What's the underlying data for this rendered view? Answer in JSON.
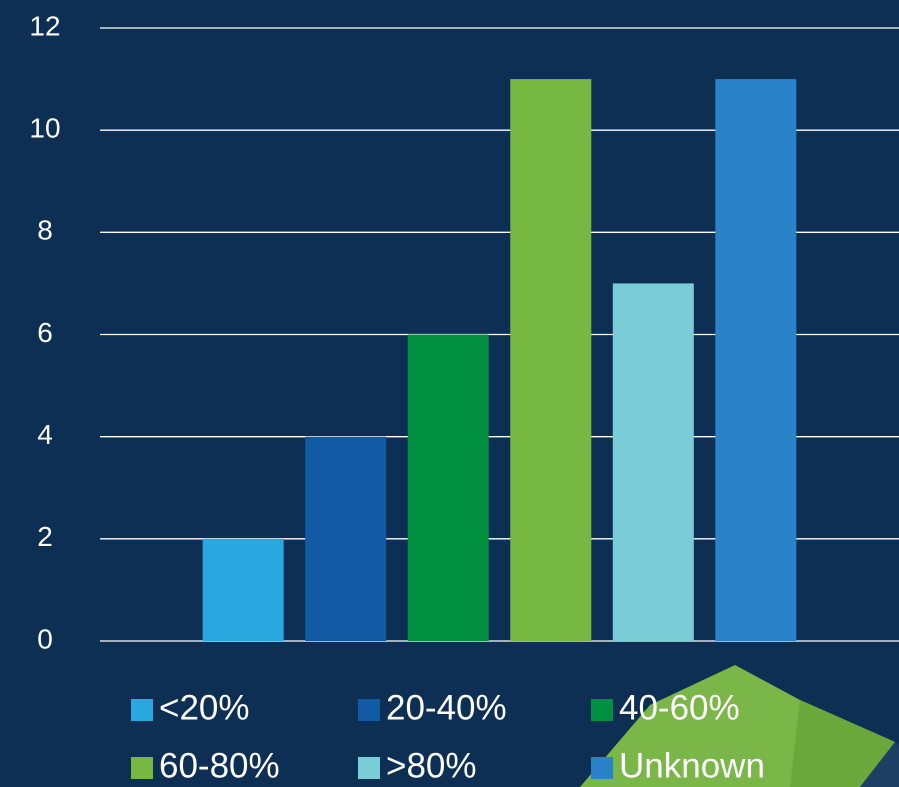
{
  "chart_data": {
    "type": "bar",
    "categories": [
      null
    ],
    "series": [
      {
        "name": "<20%",
        "color": "#29a8e0",
        "values": [
          2
        ]
      },
      {
        "name": "20-40%",
        "color": "#125aa3",
        "values": [
          4
        ]
      },
      {
        "name": "40-60%",
        "color": "#00903f",
        "values": [
          6
        ]
      },
      {
        "name": "60-80%",
        "color": "#77b843",
        "values": [
          11
        ]
      },
      {
        "name": ">80%",
        "color": "#7acdd6",
        "values": [
          7
        ]
      },
      {
        "name": "Unknown",
        "color": "#2a82c9",
        "values": [
          11
        ]
      }
    ],
    "ylim": [
      0,
      12
    ],
    "yticks": [
      0,
      2,
      4,
      6,
      8,
      10,
      12
    ],
    "grid": true,
    "legend": "bottom"
  }
}
